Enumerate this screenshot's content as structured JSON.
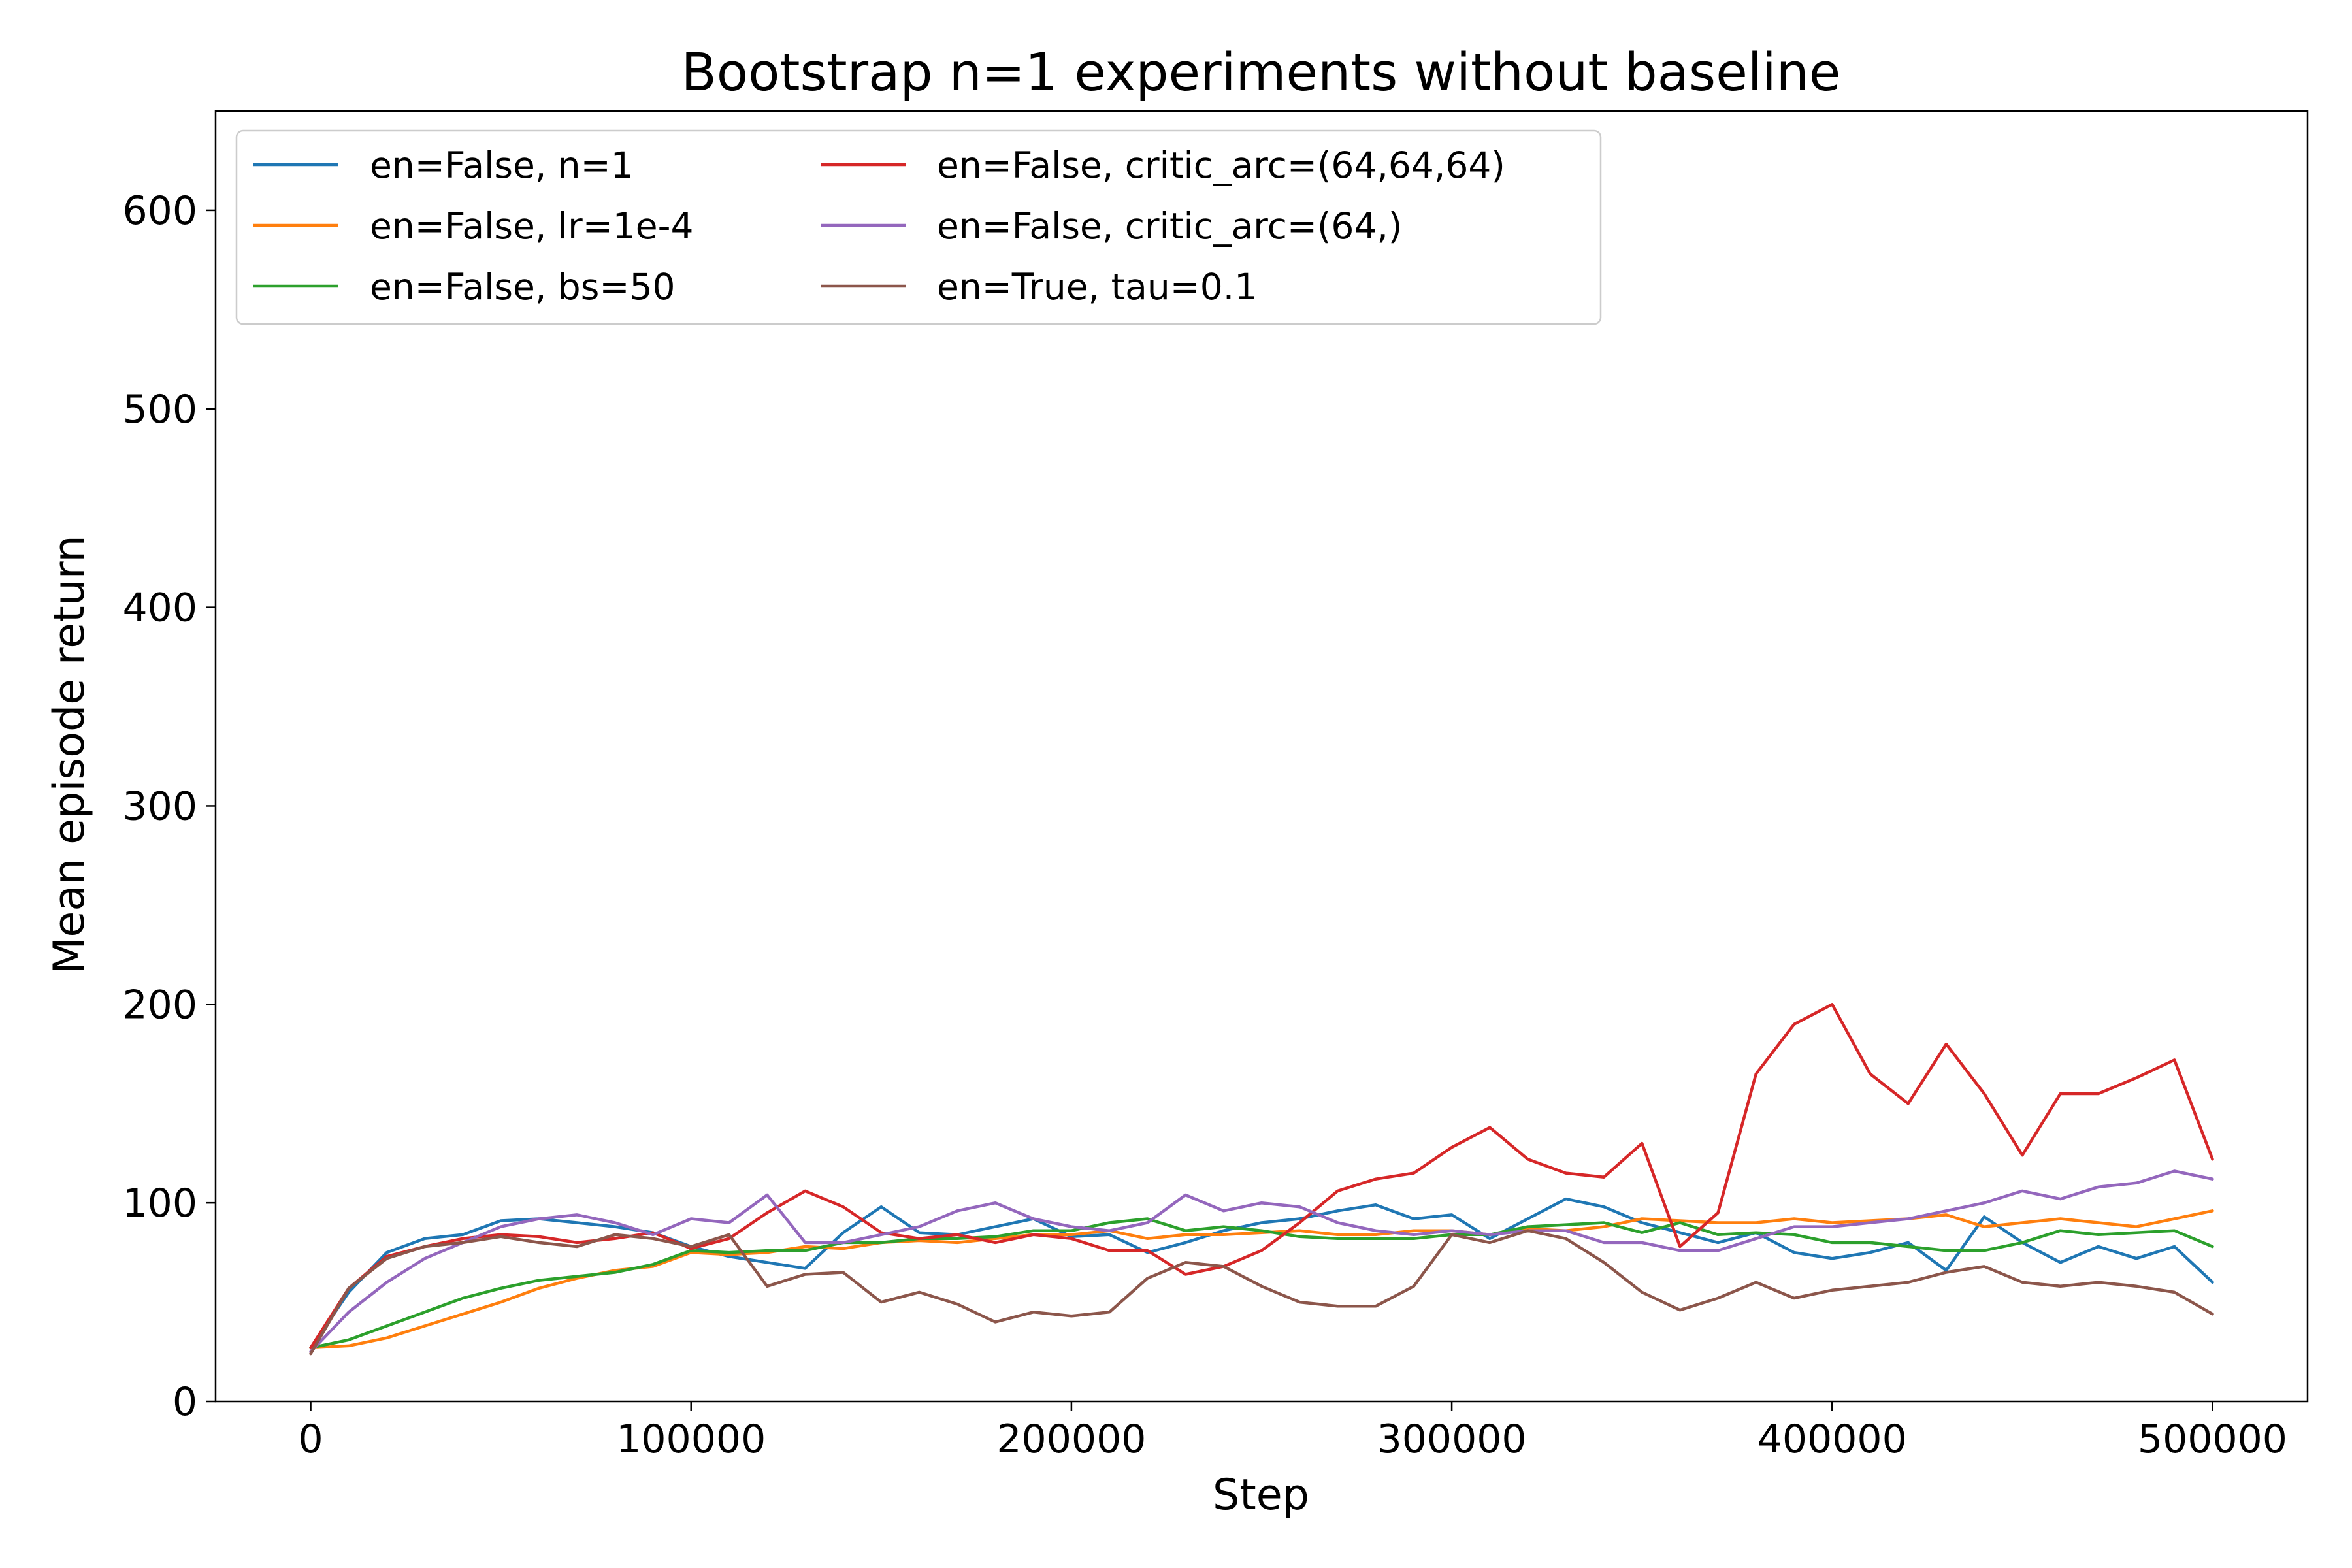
{
  "chart_data": {
    "type": "line",
    "title": "Bootstrap n=1 experiments without baseline",
    "xlabel": "Step",
    "ylabel": "Mean episode return",
    "xlim": [
      -25000,
      525000
    ],
    "ylim": [
      0,
      650
    ],
    "xticks": [
      0,
      100000,
      200000,
      300000,
      400000,
      500000
    ],
    "xtick_labels": [
      "0",
      "100000",
      "200000",
      "300000",
      "400000",
      "500000"
    ],
    "yticks": [
      0,
      100,
      200,
      300,
      400,
      500,
      600
    ],
    "ytick_labels": [
      "0",
      "100",
      "200",
      "300",
      "400",
      "500",
      "600"
    ],
    "grid": false,
    "legend_position": "top-left",
    "legend_columns": 2,
    "x": [
      0,
      10000,
      20000,
      30000,
      40000,
      50000,
      60000,
      70000,
      80000,
      90000,
      100000,
      110000,
      120000,
      130000,
      140000,
      150000,
      160000,
      170000,
      180000,
      190000,
      200000,
      210000,
      220000,
      230000,
      240000,
      250000,
      260000,
      270000,
      280000,
      290000,
      300000,
      310000,
      320000,
      330000,
      340000,
      350000,
      360000,
      370000,
      380000,
      390000,
      400000,
      410000,
      420000,
      430000,
      440000,
      450000,
      460000,
      470000,
      480000,
      490000,
      500000
    ],
    "series": [
      {
        "name": "en=False, n=1",
        "color": "#1f77b4",
        "values": [
          27,
          55,
          75,
          82,
          84,
          91,
          92,
          90,
          88,
          85,
          78,
          73,
          70,
          67,
          85,
          98,
          85,
          84,
          88,
          92,
          83,
          84,
          75,
          80,
          86,
          90,
          92,
          96,
          99,
          92,
          94,
          82,
          92,
          102,
          98,
          90,
          85,
          80,
          85,
          75,
          72,
          75,
          80,
          66,
          93,
          80,
          70,
          78,
          72,
          78,
          60
        ]
      },
      {
        "name": "en=False, lr=1e-4",
        "color": "#ff7f0e",
        "values": [
          27,
          28,
          32,
          38,
          44,
          50,
          57,
          62,
          66,
          68,
          75,
          74,
          75,
          78,
          77,
          80,
          81,
          80,
          82,
          84,
          84,
          86,
          82,
          84,
          84,
          85,
          86,
          84,
          84,
          86,
          86,
          84,
          87,
          86,
          88,
          92,
          91,
          90,
          90,
          92,
          90,
          91,
          92,
          94,
          88,
          90,
          92,
          90,
          88,
          92,
          96
        ]
      },
      {
        "name": "en=False, bs=50",
        "color": "#2ca02c",
        "values": [
          27,
          31,
          38,
          45,
          52,
          57,
          61,
          63,
          65,
          69,
          76,
          75,
          76,
          76,
          80,
          80,
          82,
          82,
          83,
          86,
          86,
          90,
          92,
          86,
          88,
          86,
          83,
          82,
          82,
          82,
          84,
          84,
          88,
          89,
          90,
          85,
          90,
          84,
          85,
          84,
          80,
          80,
          78,
          76,
          76,
          80,
          86,
          84,
          85,
          86,
          78
        ]
      },
      {
        "name": "en=False, critic_arc=(64,64,64)",
        "color": "#d62728",
        "values": [
          27,
          57,
          73,
          78,
          82,
          84,
          83,
          80,
          82,
          85,
          77,
          82,
          95,
          106,
          98,
          85,
          82,
          84,
          80,
          84,
          82,
          76,
          76,
          64,
          68,
          76,
          90,
          106,
          112,
          115,
          128,
          138,
          122,
          115,
          113,
          130,
          78,
          95,
          165,
          190,
          200,
          165,
          150,
          180,
          155,
          124,
          155,
          155,
          163,
          172,
          122
        ]
      },
      {
        "name": "en=False, critic_arc=(64,)",
        "color": "#9467bd",
        "values": [
          25,
          45,
          60,
          72,
          80,
          88,
          92,
          94,
          90,
          84,
          92,
          90,
          104,
          80,
          80,
          84,
          88,
          96,
          100,
          92,
          88,
          86,
          90,
          104,
          96,
          100,
          98,
          90,
          86,
          84,
          86,
          84,
          86,
          86,
          80,
          80,
          76,
          76,
          82,
          88,
          88,
          90,
          92,
          96,
          100,
          106,
          102,
          108,
          110,
          116,
          112
        ]
      },
      {
        "name": "en=True, tau=0.1",
        "color": "#8c564b",
        "values": [
          24,
          57,
          72,
          78,
          80,
          83,
          80,
          78,
          84,
          82,
          78,
          84,
          58,
          64,
          65,
          50,
          55,
          49,
          40,
          45,
          43,
          45,
          62,
          70,
          68,
          58,
          50,
          48,
          48,
          58,
          84,
          80,
          86,
          82,
          70,
          55,
          46,
          52,
          60,
          52,
          56,
          58,
          60,
          65,
          68,
          60,
          58,
          60,
          58,
          55,
          44
        ]
      }
    ]
  }
}
